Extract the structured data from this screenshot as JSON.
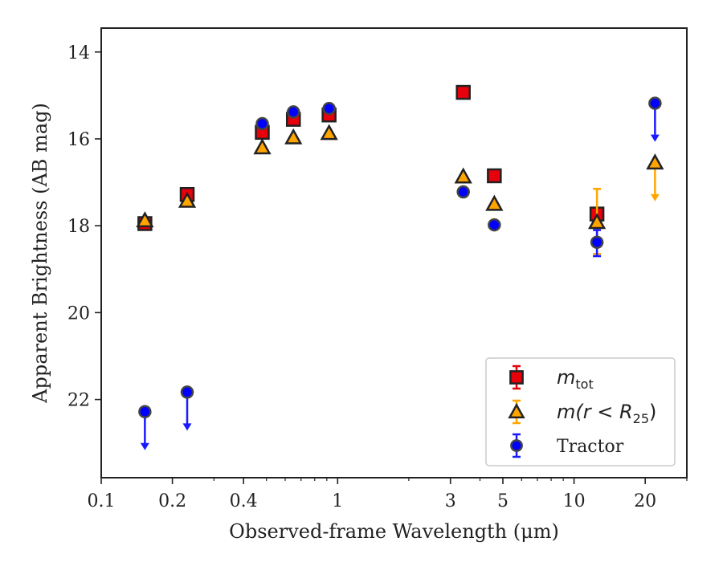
{
  "chart_data": {
    "type": "scatter",
    "xlabel": "Observed-frame Wavelength (μm)",
    "ylabel": "Apparent Brightness (AB mag)",
    "xscale": "log",
    "xlim": [
      0.1,
      30
    ],
    "ylim": [
      23.8,
      13.45
    ],
    "y_inverted": true,
    "xticks": [
      {
        "value": 0.1,
        "label": "0.1"
      },
      {
        "value": 0.2,
        "label": "0.2"
      },
      {
        "value": 0.4,
        "label": "0.4"
      },
      {
        "value": 1,
        "label": "1"
      },
      {
        "value": 3,
        "label": "3"
      },
      {
        "value": 5,
        "label": "5"
      },
      {
        "value": 10,
        "label": "10"
      },
      {
        "value": 20,
        "label": "20"
      }
    ],
    "yticks": [
      {
        "value": 14,
        "label": "14"
      },
      {
        "value": 16,
        "label": "16"
      },
      {
        "value": 18,
        "label": "18"
      },
      {
        "value": 20,
        "label": "20"
      },
      {
        "value": 22,
        "label": "22"
      }
    ],
    "grid": false,
    "legend_position": "lower-right",
    "series": [
      {
        "name": "m_tot",
        "legend_label": "m",
        "legend_sub": "tot",
        "marker": "square",
        "color": "#e8000b",
        "errcolor": "#e8000b",
        "points": [
          {
            "x": 0.153,
            "y": 17.95
          },
          {
            "x": 0.231,
            "y": 17.28
          },
          {
            "x": 0.48,
            "y": 15.85
          },
          {
            "x": 0.65,
            "y": 15.55
          },
          {
            "x": 0.92,
            "y": 15.45
          },
          {
            "x": 3.4,
            "y": 14.93
          },
          {
            "x": 4.6,
            "y": 16.85
          },
          {
            "x": 12.5,
            "y": 17.73
          }
        ]
      },
      {
        "name": "m(r < R25)",
        "legend_label": "m(r < R",
        "legend_sub": "25",
        "legend_suffix": ")",
        "marker": "triangle",
        "color": "#ffa500",
        "errcolor": "#ffa500",
        "points": [
          {
            "x": 0.153,
            "y": 17.88
          },
          {
            "x": 0.231,
            "y": 17.43
          },
          {
            "x": 0.48,
            "y": 16.2
          },
          {
            "x": 0.65,
            "y": 15.97
          },
          {
            "x": 0.92,
            "y": 15.87
          },
          {
            "x": 3.4,
            "y": 16.87
          },
          {
            "x": 4.6,
            "y": 17.5
          },
          {
            "x": 12.5,
            "y": 17.92,
            "err": [
              17.15,
              18.65
            ]
          },
          {
            "x": 22,
            "y": 16.55,
            "upper_limit": true
          }
        ]
      },
      {
        "name": "Tractor",
        "legend_label": "Tractor",
        "marker": "circle",
        "color": "#0000ff",
        "errcolor": "#1a1aff",
        "points": [
          {
            "x": 0.153,
            "y": 22.28,
            "upper_limit": true
          },
          {
            "x": 0.231,
            "y": 21.83,
            "upper_limit": true
          },
          {
            "x": 0.48,
            "y": 15.65
          },
          {
            "x": 0.65,
            "y": 15.38
          },
          {
            "x": 0.92,
            "y": 15.3
          },
          {
            "x": 3.4,
            "y": 17.22
          },
          {
            "x": 4.6,
            "y": 17.98
          },
          {
            "x": 12.5,
            "y": 18.38,
            "err": [
              18.1,
              18.7
            ]
          },
          {
            "x": 22,
            "y": 15.18,
            "upper_limit": true
          }
        ]
      }
    ]
  }
}
